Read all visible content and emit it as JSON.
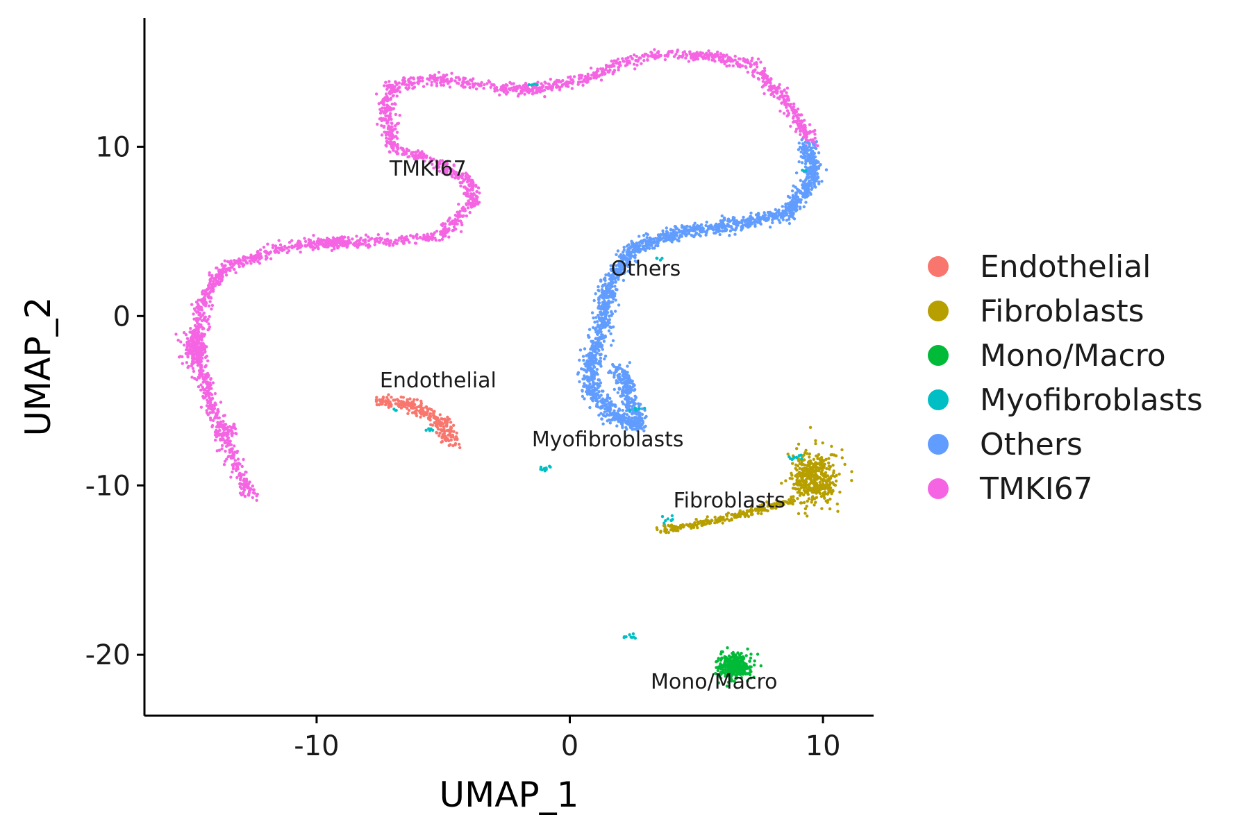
{
  "chart_data": {
    "type": "scatter",
    "xlabel": "UMAP_1",
    "ylabel": "UMAP_2",
    "xlim": [
      -16.8,
      12.0
    ],
    "ylim": [
      -23.6,
      17.6
    ],
    "x_ticks": [
      -10,
      0,
      10
    ],
    "y_ticks": [
      -20,
      -10,
      0,
      10
    ],
    "x_tick_labels": [
      "-10",
      "0",
      "10"
    ],
    "y_tick_labels": [
      "-20",
      "-10",
      "0",
      "10"
    ],
    "grid": false,
    "legend_position": "right",
    "series": [
      {
        "name": "Endothelial",
        "color": "#F8766D",
        "label": "Endothelial",
        "label_pos": [
          -5.2,
          -4.2
        ],
        "path": [
          [
            -7.5,
            -5.0
          ],
          [
            -6.5,
            -5.1
          ],
          [
            -5.6,
            -5.7
          ],
          [
            -4.9,
            -6.5
          ],
          [
            -4.7,
            -7.5
          ]
        ],
        "spread": 0.35,
        "count": 260
      },
      {
        "name": "Fibroblasts",
        "color": "#B79F00",
        "label": "Fibroblasts",
        "label_pos": [
          6.3,
          -11.3
        ],
        "path": [
          [
            3.6,
            -12.6
          ],
          [
            5.0,
            -12.3
          ],
          [
            6.5,
            -11.8
          ],
          [
            8.0,
            -11.2
          ],
          [
            9.0,
            -10.8
          ]
        ],
        "spread": 0.2,
        "count": 220,
        "blobs": [
          {
            "center": [
              9.7,
              -9.6
            ],
            "rx": 0.9,
            "ry": 1.6,
            "count": 420
          }
        ]
      },
      {
        "name": "Mono/Macro",
        "color": "#00BA38",
        "label": "Mono/Macro",
        "label_pos": [
          5.7,
          -22.0
        ],
        "blobs": [
          {
            "center": [
              6.5,
              -20.7
            ],
            "rx": 0.65,
            "ry": 0.75,
            "count": 320
          }
        ]
      },
      {
        "name": "Myofibroblasts",
        "color": "#00BFC4",
        "label": "Myofibroblasts",
        "label_pos": [
          1.5,
          -7.7
        ],
        "blobs": [
          {
            "center": [
              -1.0,
              -9.0
            ],
            "rx": 0.15,
            "ry": 0.15,
            "count": 10
          },
          {
            "center": [
              -5.5,
              -6.7
            ],
            "rx": 0.2,
            "ry": 0.1,
            "count": 5
          },
          {
            "center": [
              -6.9,
              -5.5
            ],
            "rx": 0.1,
            "ry": 0.1,
            "count": 3
          },
          {
            "center": [
              2.4,
              -18.9
            ],
            "rx": 0.3,
            "ry": 0.12,
            "count": 9
          },
          {
            "center": [
              3.9,
              -12.0
            ],
            "rx": 0.35,
            "ry": 0.3,
            "count": 8
          },
          {
            "center": [
              8.9,
              -8.3
            ],
            "rx": 0.3,
            "ry": 0.2,
            "count": 10
          },
          {
            "center": [
              2.6,
              -5.5
            ],
            "rx": 0.25,
            "ry": 0.2,
            "count": 6
          },
          {
            "center": [
              3.5,
              3.4
            ],
            "rx": 0.2,
            "ry": 0.15,
            "count": 5
          },
          {
            "center": [
              -1.5,
              13.7
            ],
            "rx": 0.25,
            "ry": 0.1,
            "count": 5
          },
          {
            "center": [
              9.3,
              8.6
            ],
            "rx": 0.15,
            "ry": 0.2,
            "count": 4
          }
        ]
      },
      {
        "name": "Others",
        "color": "#619CFF",
        "label": "Others",
        "label_pos": [
          3.0,
          2.4
        ],
        "path": [
          [
            9.4,
            10.2
          ],
          [
            9.6,
            8.0
          ],
          [
            8.5,
            6.0
          ],
          [
            6.5,
            5.4
          ],
          [
            4.5,
            5.0
          ],
          [
            2.5,
            4.0
          ],
          [
            1.5,
            1.8
          ],
          [
            1.3,
            -0.5
          ],
          [
            0.9,
            -2.5
          ],
          [
            0.8,
            -4.3
          ],
          [
            1.6,
            -5.8
          ],
          [
            2.7,
            -6.5
          ],
          [
            2.3,
            -4.7
          ],
          [
            2.0,
            -3.0
          ]
        ],
        "spread": 0.35,
        "count": 1900
      },
      {
        "name": "TMKI67",
        "color": "#F564E3",
        "label": "TMKI67",
        "label_pos": [
          -5.6,
          8.3
        ],
        "path": [
          [
            -12.6,
            -10.7
          ],
          [
            -13.3,
            -8.5
          ],
          [
            -14.2,
            -5.0
          ],
          [
            -14.8,
            -2.0
          ],
          [
            -14.5,
            1.0
          ],
          [
            -13.5,
            3.0
          ],
          [
            -11.5,
            3.9
          ],
          [
            -9.5,
            4.4
          ],
          [
            -7.0,
            4.4
          ],
          [
            -5.0,
            4.8
          ],
          [
            -3.8,
            6.8
          ],
          [
            -4.0,
            8.0
          ],
          [
            -5.2,
            9.0
          ],
          [
            -7.0,
            10.0
          ],
          [
            -7.3,
            12.8
          ],
          [
            -6.8,
            13.7
          ],
          [
            -5.0,
            14.0
          ],
          [
            -3.5,
            13.6
          ],
          [
            -1.5,
            13.3
          ],
          [
            1.0,
            14.2
          ],
          [
            2.0,
            15.0
          ],
          [
            3.5,
            15.4
          ],
          [
            5.5,
            15.4
          ],
          [
            7.2,
            14.8
          ],
          [
            8.4,
            13.0
          ],
          [
            9.6,
            10.2
          ]
        ],
        "spread": 0.3,
        "count": 2300,
        "blobs": [
          {
            "center": [
              -14.8,
              -1.9
            ],
            "rx": 0.5,
            "ry": 1.0,
            "count": 160
          },
          {
            "center": [
              -13.5,
              -6.8
            ],
            "rx": 0.5,
            "ry": 0.45,
            "count": 50
          },
          {
            "center": [
              -9.5,
              4.3
            ],
            "rx": 1.0,
            "ry": 0.25,
            "count": 90
          }
        ]
      }
    ]
  }
}
